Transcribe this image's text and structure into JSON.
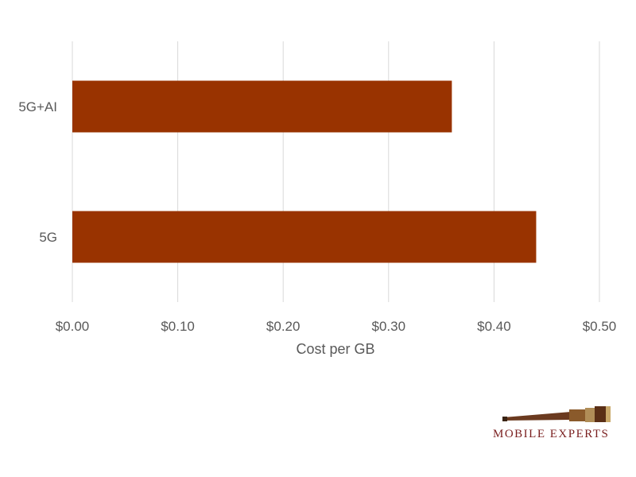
{
  "chart_data": {
    "type": "bar",
    "orientation": "horizontal",
    "categories": [
      "5G+AI",
      "5G"
    ],
    "values": [
      0.36,
      0.44
    ],
    "xlabel": "Cost per GB",
    "ylabel": "",
    "xlim": [
      0,
      0.5
    ],
    "x_ticks": [
      "$0.00",
      "$0.10",
      "$0.20",
      "$0.30",
      "$0.40",
      "$0.50"
    ],
    "x_tick_values": [
      0,
      0.1,
      0.2,
      0.3,
      0.4,
      0.5
    ],
    "grid": "vertical",
    "bar_color": "#993300"
  },
  "logo": {
    "text": "MOBILE EXPERTS",
    "icon": "telescope-icon",
    "color": "#7a1f1f"
  }
}
